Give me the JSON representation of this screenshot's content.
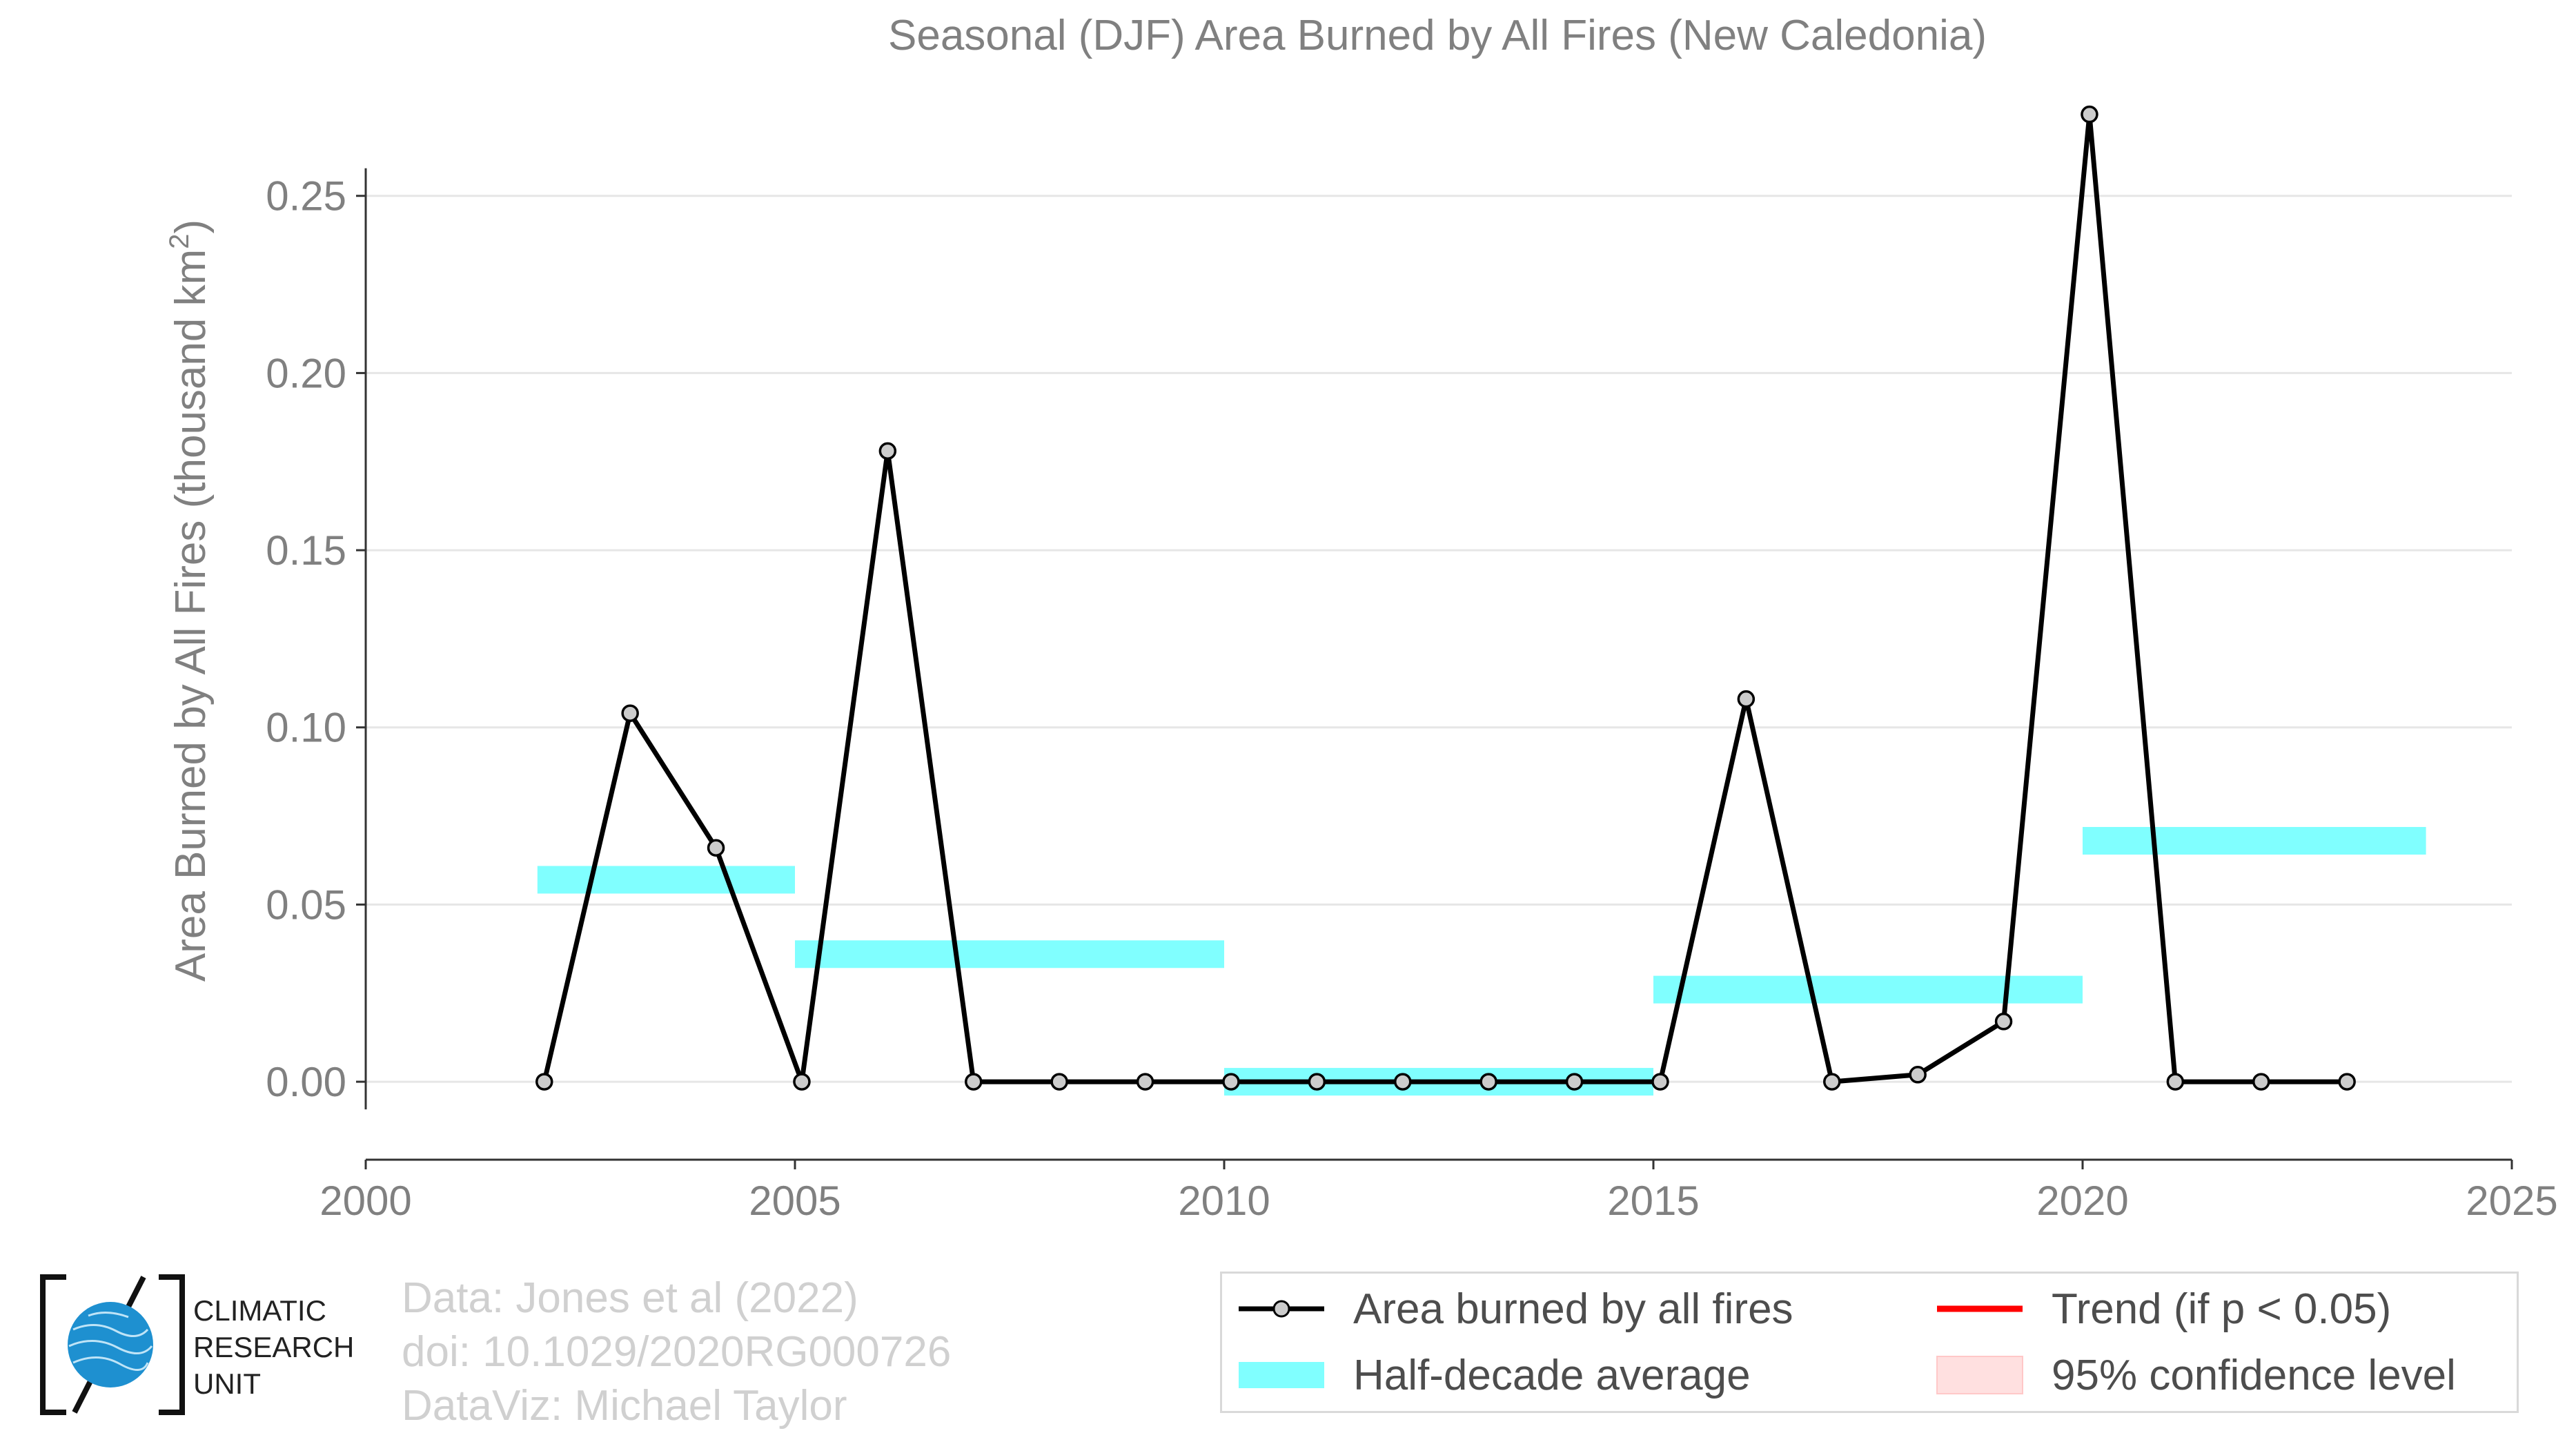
{
  "chart_data": {
    "type": "line",
    "title": "Seasonal (DJF) Area Burned by All Fires (New Caledonia)",
    "xlabel": "",
    "ylabel": "Area Burned by All Fires (thousand km",
    "ylabel_sup": "2",
    "ylabel_close": ")",
    "xlim": [
      2000,
      2025
    ],
    "ylim": [
      -0.022,
      0.278
    ],
    "x_ticks": [
      2000,
      2005,
      2010,
      2015,
      2020,
      2025
    ],
    "x_tick_labels": [
      "2000",
      "2005",
      "2010",
      "2015",
      "2020",
      "2025"
    ],
    "y_ticks": [
      0.0,
      0.05,
      0.1,
      0.15,
      0.2,
      0.25
    ],
    "y_tick_labels": [
      "0.00",
      "0.05",
      "0.10",
      "0.15",
      "0.20",
      "0.25"
    ],
    "grid": "horizontal",
    "series": [
      {
        "name": "Area burned by all fires",
        "style": "line-with-markers",
        "color": "#000000",
        "marker_fill": "#cccccc",
        "x": [
          2002.08,
          2003.08,
          2004.08,
          2005.08,
          2006.08,
          2007.08,
          2008.08,
          2009.08,
          2010.08,
          2011.08,
          2012.08,
          2013.08,
          2014.08,
          2015.08,
          2016.08,
          2017.08,
          2018.08,
          2019.08,
          2020.08,
          2021.08,
          2022.08,
          2023.08
        ],
        "y": [
          0.0,
          0.104,
          0.066,
          0.0,
          0.178,
          0.0,
          0.0,
          0.0,
          0.0,
          0.0,
          0.0,
          0.0,
          0.0,
          0.0,
          0.108,
          0.0,
          0.002,
          0.017,
          0.273,
          0.0,
          0.0,
          0.0
        ]
      },
      {
        "name": "Half-decade average",
        "style": "horizontal-bands",
        "color": "#80ffff",
        "segments": [
          {
            "x_start": 2002,
            "x_end": 2005,
            "y": 0.057
          },
          {
            "x_start": 2005,
            "x_end": 2010,
            "y": 0.036
          },
          {
            "x_start": 2010,
            "x_end": 2015,
            "y": 0.0
          },
          {
            "x_start": 2015,
            "x_end": 2020,
            "y": 0.026
          },
          {
            "x_start": 2020,
            "x_end": 2024,
            "y": 0.068
          }
        ]
      }
    ],
    "legend": {
      "placement": "bottom-right",
      "items": [
        {
          "label": "Area burned by all fires",
          "key": "line-marker",
          "color": "#000000"
        },
        {
          "label": "Trend (if p < 0.05)",
          "key": "line",
          "color": "#ff0000"
        },
        {
          "label": "Half-decade average",
          "key": "band",
          "color": "#80ffff"
        },
        {
          "label": "95% confidence level",
          "key": "band",
          "color": "#ffe0e0"
        }
      ]
    }
  },
  "credits": {
    "line1": "Data: Jones et al (2022)",
    "line2": "doi: 10.1029/2020RG000726",
    "line3": "DataViz: Michael Taylor"
  },
  "logo": {
    "line1": "CLIMATIC",
    "line2": "RESEARCH",
    "line3": "UNIT",
    "globe_color": "#1e90d0"
  }
}
